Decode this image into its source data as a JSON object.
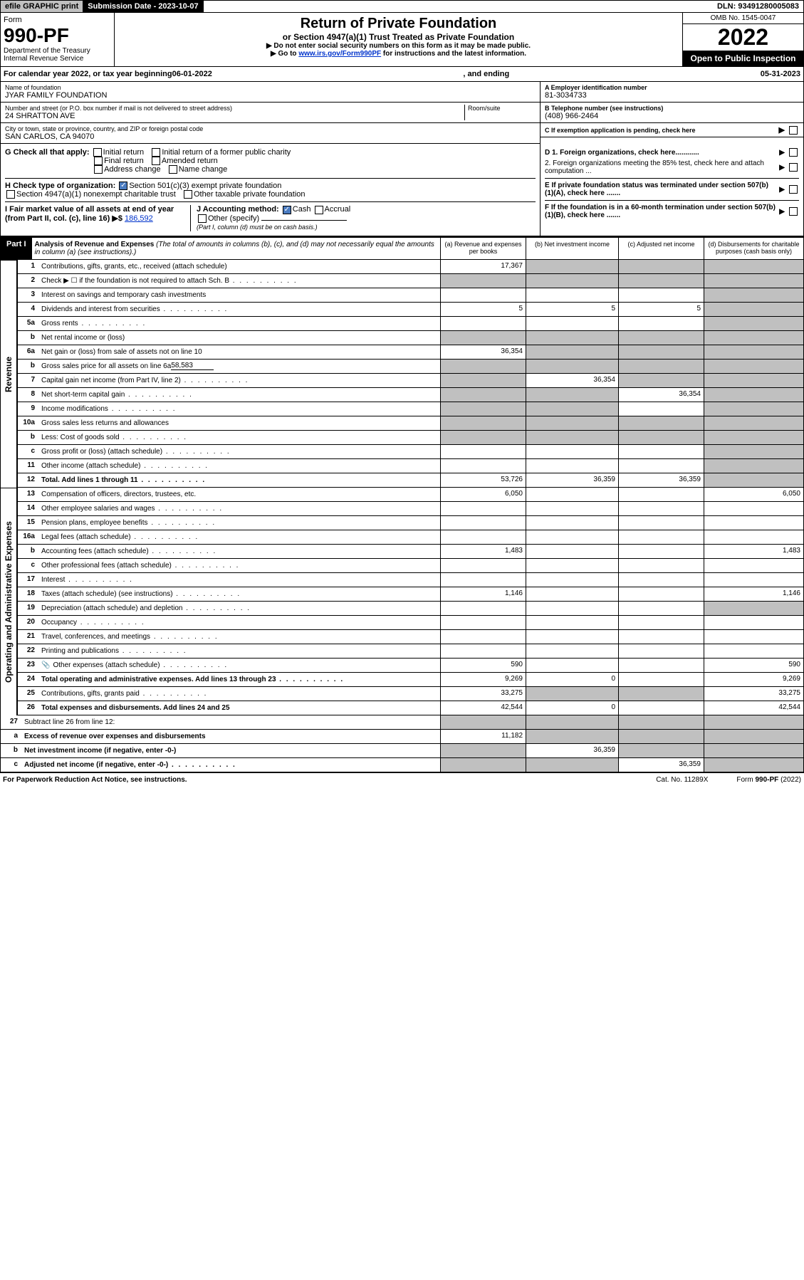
{
  "topbar": {
    "efile": "efile GRAPHIC print",
    "submission_label": "Submission Date - 2023-10-07",
    "dln": "DLN: 93491280005083"
  },
  "header": {
    "form_label": "Form",
    "form_number": "990-PF",
    "dept": "Department of the Treasury",
    "irs": "Internal Revenue Service",
    "title": "Return of Private Foundation",
    "subtitle": "or Section 4947(a)(1) Trust Treated as Private Foundation",
    "instr1": "▶ Do not enter social security numbers on this form as it may be made public.",
    "instr2_pre": "▶ Go to ",
    "instr2_link": "www.irs.gov/Form990PF",
    "instr2_post": " for instructions and the latest information.",
    "omb": "OMB No. 1545-0047",
    "year": "2022",
    "open": "Open to Public Inspection"
  },
  "cal_year": {
    "prefix": "For calendar year 2022, or tax year beginning ",
    "begin": "06-01-2022",
    "mid": ", and ending ",
    "end": "05-31-2023"
  },
  "entity": {
    "name_label": "Name of foundation",
    "name": "JYAR FAMILY FOUNDATION",
    "addr_label": "Number and street (or P.O. box number if mail is not delivered to street address)",
    "addr": "24 SHRATTON AVE",
    "room_label": "Room/suite",
    "city_label": "City or town, state or province, country, and ZIP or foreign postal code",
    "city": "SAN CARLOS, CA  94070",
    "ein_label": "A Employer identification number",
    "ein": "81-3034733",
    "phone_label": "B Telephone number (see instructions)",
    "phone": "(408) 966-2464",
    "c_label": "C If exemption application is pending, check here"
  },
  "checks": {
    "g_label": "G Check all that apply:",
    "g1": "Initial return",
    "g2": "Initial return of a former public charity",
    "g3": "Final return",
    "g4": "Amended return",
    "g5": "Address change",
    "g6": "Name change",
    "h_label": "H Check type of organization:",
    "h1": "Section 501(c)(3) exempt private foundation",
    "h2": "Section 4947(a)(1) nonexempt charitable trust",
    "h3": "Other taxable private foundation",
    "i_label": "I Fair market value of all assets at end of year (from Part II, col. (c), line 16) ▶$",
    "i_value": "186,592",
    "j_label": "J Accounting method:",
    "j1": "Cash",
    "j2": "Accrual",
    "j3": "Other (specify)",
    "j_note": "(Part I, column (d) must be on cash basis.)",
    "d1": "D 1. Foreign organizations, check here............",
    "d2": "2. Foreign organizations meeting the 85% test, check here and attach computation ...",
    "e": "E  If private foundation status was terminated under section 507(b)(1)(A), check here .......",
    "f": "F  If the foundation is in a 60-month termination under section 507(b)(1)(B), check here .......",
    "arrow": "▶"
  },
  "part1": {
    "label": "Part I",
    "title": "Analysis of Revenue and Expenses",
    "note": "(The total of amounts in columns (b), (c), and (d) may not necessarily equal the amounts in column (a) (see instructions).)",
    "col_a": "(a)   Revenue and expenses per books",
    "col_b": "(b)   Net investment income",
    "col_c": "(c)   Adjusted net income",
    "col_d": "(d)   Disbursements for charitable purposes (cash basis only)"
  },
  "side_labels": {
    "revenue": "Revenue",
    "expenses": "Operating and Administrative Expenses"
  },
  "rows": {
    "r1": {
      "n": "1",
      "d": "Contributions, gifts, grants, etc., received (attach schedule)",
      "a": "17,367"
    },
    "r2": {
      "n": "2",
      "d": "Check ▶ ☐ if the foundation is not required to attach Sch. B"
    },
    "r3": {
      "n": "3",
      "d": "Interest on savings and temporary cash investments"
    },
    "r4": {
      "n": "4",
      "d": "Dividends and interest from securities",
      "a": "5",
      "b": "5",
      "c": "5"
    },
    "r5a": {
      "n": "5a",
      "d": "Gross rents"
    },
    "r5b": {
      "n": "b",
      "d": "Net rental income or (loss)"
    },
    "r6a": {
      "n": "6a",
      "d": "Net gain or (loss) from sale of assets not on line 10",
      "a": "36,354"
    },
    "r6b": {
      "n": "b",
      "d": "Gross sales price for all assets on line 6a",
      "v": "58,583"
    },
    "r7": {
      "n": "7",
      "d": "Capital gain net income (from Part IV, line 2)",
      "b": "36,354"
    },
    "r8": {
      "n": "8",
      "d": "Net short-term capital gain",
      "c": "36,354"
    },
    "r9": {
      "n": "9",
      "d": "Income modifications"
    },
    "r10a": {
      "n": "10a",
      "d": "Gross sales less returns and allowances"
    },
    "r10b": {
      "n": "b",
      "d": "Less: Cost of goods sold"
    },
    "r10c": {
      "n": "c",
      "d": "Gross profit or (loss) (attach schedule)"
    },
    "r11": {
      "n": "11",
      "d": "Other income (attach schedule)"
    },
    "r12": {
      "n": "12",
      "d": "Total. Add lines 1 through 11",
      "a": "53,726",
      "b": "36,359",
      "c": "36,359"
    },
    "r13": {
      "n": "13",
      "d": "Compensation of officers, directors, trustees, etc.",
      "a": "6,050",
      "d4": "6,050"
    },
    "r14": {
      "n": "14",
      "d": "Other employee salaries and wages"
    },
    "r15": {
      "n": "15",
      "d": "Pension plans, employee benefits"
    },
    "r16a": {
      "n": "16a",
      "d": "Legal fees (attach schedule)"
    },
    "r16b": {
      "n": "b",
      "d": "Accounting fees (attach schedule)",
      "a": "1,483",
      "d4": "1,483"
    },
    "r16c": {
      "n": "c",
      "d": "Other professional fees (attach schedule)"
    },
    "r17": {
      "n": "17",
      "d": "Interest"
    },
    "r18": {
      "n": "18",
      "d": "Taxes (attach schedule) (see instructions)",
      "a": "1,146",
      "d4": "1,146"
    },
    "r19": {
      "n": "19",
      "d": "Depreciation (attach schedule) and depletion"
    },
    "r20": {
      "n": "20",
      "d": "Occupancy"
    },
    "r21": {
      "n": "21",
      "d": "Travel, conferences, and meetings"
    },
    "r22": {
      "n": "22",
      "d": "Printing and publications"
    },
    "r23": {
      "n": "23",
      "d": "Other expenses (attach schedule)",
      "a": "590",
      "d4": "590",
      "icon": "📎"
    },
    "r24": {
      "n": "24",
      "d": "Total operating and administrative expenses. Add lines 13 through 23",
      "a": "9,269",
      "b": "0",
      "d4": "9,269"
    },
    "r25": {
      "n": "25",
      "d": "Contributions, gifts, grants paid",
      "a": "33,275",
      "d4": "33,275"
    },
    "r26": {
      "n": "26",
      "d": "Total expenses and disbursements. Add lines 24 and 25",
      "a": "42,544",
      "b": "0",
      "d4": "42,544"
    },
    "r27": {
      "n": "27",
      "d": "Subtract line 26 from line 12:"
    },
    "r27a": {
      "n": "a",
      "d": "Excess of revenue over expenses and disbursements",
      "a": "11,182"
    },
    "r27b": {
      "n": "b",
      "d": "Net investment income (if negative, enter -0-)",
      "b": "36,359"
    },
    "r27c": {
      "n": "c",
      "d": "Adjusted net income (if negative, enter -0-)",
      "c": "36,359"
    }
  },
  "footer": {
    "pra": "For Paperwork Reduction Act Notice, see instructions.",
    "cat": "Cat. No. 11289X",
    "form": "Form 990-PF (2022)"
  },
  "colors": {
    "black": "#000000",
    "gray": "#c0c0c0",
    "link": "#0033cc",
    "check": "#4a7bc0"
  }
}
